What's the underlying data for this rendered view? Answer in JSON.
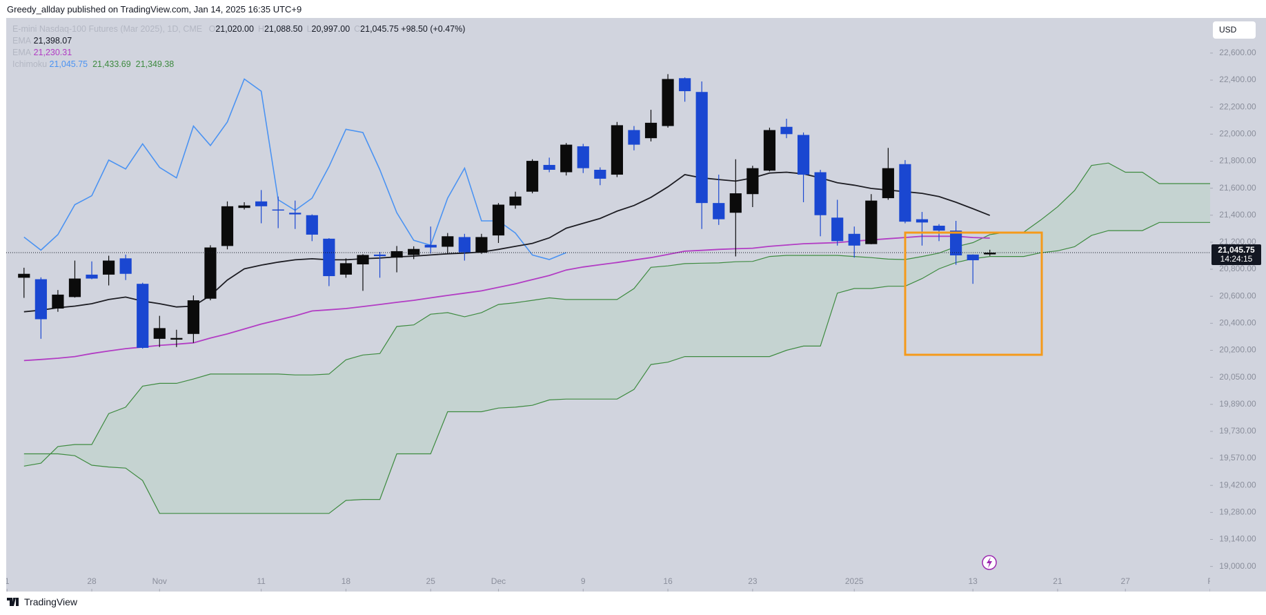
{
  "header": {
    "title": "Greedy_allday published on TradingView.com, Jan 14, 2025 16:35 UTC+9"
  },
  "legend": {
    "symbol": "E-mini Nasdaq-100 Futures (Mar 2025), 1D, CME",
    "ohlc": [
      {
        "key": "O",
        "text": "21,020.00"
      },
      {
        "key": "H",
        "text": "21,088.50"
      },
      {
        "key": "L",
        "text": "20,997.00"
      },
      {
        "key": "C",
        "text": "21,045.75"
      }
    ],
    "change": "+98.50 (+0.47%)",
    "ema_fast": {
      "name": "EMA",
      "text": "21,398.07"
    },
    "ema_slow": {
      "name": "EMA",
      "text": "21,230.31"
    },
    "ichimoku": {
      "name": "Ichimoku",
      "texts": [
        "21,045.75",
        "21,433.69",
        "21,349.38"
      ]
    }
  },
  "currency": "USD",
  "price_marker": {
    "price": "21,045.75",
    "countdown": "14:24:15"
  },
  "footer": {
    "brand": "TradingView"
  },
  "chart_data": {
    "type": "candlestick",
    "up_color": "#0b0b0b",
    "down_color": "#1a47d1",
    "open": [
      20737,
      20726,
      20509,
      20594,
      20760,
      20760,
      20961,
      20692,
      20285,
      20279,
      20321,
      20582,
      21144,
      21454,
      21502,
      21442,
      21418,
      21400,
      21226,
      20760,
      20872,
      21017,
      20972,
      21011,
      21161,
      21133,
      21238,
      21044,
      21250,
      21472,
      21574,
      21772,
      21718,
      21910,
      21736,
      21700,
      22030,
      21970,
      22060,
      22414,
      22312,
      21490,
      21418,
      21556,
      21730,
      22054,
      21994,
      21718,
      21382,
      21262,
      21172,
      21526,
      21778,
      21370,
      21322,
      21286,
      21017,
      21020
    ],
    "high": [
      20822,
      20740,
      20646,
      20928,
      20916,
      21000,
      21017,
      20700,
      20455,
      20352,
      20606,
      21155,
      21502,
      21496,
      21586,
      21538,
      21508,
      21406,
      21230,
      20961,
      21022,
      21055,
      21144,
      21139,
      21316,
      21268,
      21262,
      21262,
      21490,
      21574,
      21814,
      21826,
      21934,
      21928,
      21754,
      22090,
      22060,
      22180,
      22444,
      22420,
      22390,
      21700,
      21814,
      21766,
      22048,
      22114,
      22012,
      21736,
      21514,
      21316,
      21556,
      21898,
      21808,
      21424,
      21334,
      21358,
      21020,
      21088.5
    ],
    "low": [
      20588,
      20285,
      20485,
      20590,
      20726,
      20680,
      20720,
      20212,
      20224,
      20224,
      20255,
      20570,
      21094,
      21442,
      21340,
      21304,
      21298,
      21208,
      20675,
      20737,
      20640,
      20737,
      20777,
      20950,
      21033,
      21028,
      20928,
      21028,
      21189,
      21448,
      21562,
      21718,
      21694,
      21712,
      21622,
      21682,
      21880,
      21946,
      22048,
      22240,
      21298,
      21328,
      20989,
      21460,
      21724,
      21970,
      21496,
      21244,
      21150,
      20972,
      21170,
      21514,
      21340,
      21150,
      21208,
      20866,
      20692,
      20997
    ],
    "close": [
      20766,
      20430,
      20612,
      20731,
      20731,
      20928,
      20766,
      20218,
      20364,
      20291,
      20570,
      21122,
      21466,
      21472,
      21466,
      21436,
      21406,
      21256,
      20749,
      20889,
      21011,
      20994,
      21067,
      21100,
      21122,
      21244,
      21050,
      21238,
      21478,
      21538,
      21802,
      21736,
      21922,
      21748,
      21670,
      22066,
      21922,
      22084,
      22408,
      22318,
      21490,
      21370,
      21562,
      21748,
      22030,
      22000,
      21700,
      21400,
      21208,
      21150,
      21508,
      21748,
      21352,
      21346,
      21286,
      21005,
      20933,
      21045.75
    ],
    "lines": [
      {
        "name": "EMA",
        "color": "#1c1c22",
        "values": [
          20485,
          20497,
          20515,
          20527,
          20545,
          20576,
          20594,
          20564,
          20545,
          20521,
          20527,
          20606,
          20720,
          20806,
          20861,
          20905,
          20939,
          20955,
          20939,
          20939,
          20955,
          20966,
          20983,
          20994,
          21011,
          21028,
          21039,
          21055,
          21094,
          21139,
          21183,
          21232,
          21304,
          21340,
          21376,
          21430,
          21472,
          21532,
          21610,
          21700,
          21676,
          21664,
          21652,
          21676,
          21712,
          21718,
          21706,
          21676,
          21640,
          21622,
          21598,
          21586,
          21574,
          21562,
          21538,
          21496,
          21448,
          21398.07
        ]
      },
      {
        "name": "EMA",
        "color": "#b23cc4",
        "values": [
          20143,
          20149,
          20156,
          20165,
          20182,
          20196,
          20212,
          20224,
          20236,
          20245,
          20255,
          20291,
          20321,
          20358,
          20394,
          20424,
          20455,
          20491,
          20500,
          20509,
          20524,
          20539,
          20555,
          20570,
          20588,
          20606,
          20623,
          20640,
          20666,
          20692,
          20723,
          20754,
          20794,
          20833,
          20867,
          20900,
          20936,
          20972,
          21019,
          21067,
          21080,
          21094,
          21103,
          21111,
          21139,
          21158,
          21178,
          21186,
          21194,
          21208,
          21217,
          21226,
          21235,
          21244,
          21244,
          21244,
          21235,
          21230.31
        ]
      }
    ],
    "ichimoku": {
      "lagging": {
        "color": "#4b93f2",
        "values": [
          21238,
          21083,
          21256,
          21478,
          21544,
          21808,
          21742,
          21928,
          21754,
          21676,
          22060,
          21916,
          22090,
          22408,
          22318,
          21514,
          21436,
          21526,
          21760,
          22036,
          22012,
          21736,
          21418,
          21214,
          21155,
          21526,
          21748,
          21358,
          21358,
          21268,
          21011,
          20944,
          21045.75
        ]
      },
      "span_a": {
        "color": "#3d8a3f",
        "values": [
          19527,
          19543,
          19640,
          19652,
          19652,
          19835,
          19873,
          19998,
          20014,
          20014,
          20040,
          20068,
          20068,
          20068,
          20068,
          20068,
          20063,
          20063,
          20068,
          20147,
          20174,
          20182,
          20376,
          20388,
          20467,
          20479,
          20448,
          20479,
          20539,
          20552,
          20570,
          20588,
          20576,
          20576,
          20576,
          20576,
          20657,
          20828,
          20850,
          20883,
          20889,
          20894,
          20911,
          20916,
          20989,
          21005,
          21005,
          21005,
          21005,
          20989,
          20972,
          20950,
          20944,
          20989,
          21039,
          21133,
          21194,
          21256,
          21274,
          21274,
          21364,
          21462,
          21582,
          21768,
          21786,
          21718,
          21718,
          21634,
          21634,
          21634,
          21634
        ]
      },
      "span_b": {
        "color": "#3d8a3f",
        "values": [
          19597,
          19597,
          19597,
          19586,
          19532,
          19522,
          19516,
          19447,
          19275,
          19275,
          19275,
          19275,
          19275,
          19275,
          19275,
          19275,
          19275,
          19275,
          19275,
          19342,
          19347,
          19347,
          19597,
          19597,
          19597,
          19846,
          19846,
          19846,
          19868,
          19873,
          19884,
          19916,
          19921,
          19921,
          19921,
          19921,
          19978,
          20121,
          20134,
          20165,
          20165,
          20165,
          20165,
          20165,
          20165,
          20200,
          20231,
          20231,
          20623,
          20657,
          20657,
          20674,
          20674,
          20731,
          20806,
          20900,
          20955,
          20989,
          20989,
          20989,
          21044,
          21072,
          21133,
          21250,
          21286,
          21286,
          21286,
          21346,
          21346,
          21346,
          21346
        ]
      },
      "cloud_color": "#c3d3cf"
    },
    "xlim": [
      -1.05,
      70
    ],
    "xticks": [
      {
        "value": -1,
        "label": "1"
      },
      {
        "value": 4,
        "label": "28"
      },
      {
        "value": 8,
        "label": "Nov"
      },
      {
        "value": 14,
        "label": "11"
      },
      {
        "value": 19,
        "label": "18"
      },
      {
        "value": 24,
        "label": "25"
      },
      {
        "value": 28,
        "label": "Dec"
      },
      {
        "value": 33,
        "label": "9"
      },
      {
        "value": 38,
        "label": "16"
      },
      {
        "value": 43,
        "label": "23"
      },
      {
        "value": 49,
        "label": "2025"
      },
      {
        "value": 56,
        "label": "13"
      },
      {
        "value": 61,
        "label": "21"
      },
      {
        "value": 65,
        "label": "27"
      },
      {
        "value": 70,
        "label": "F"
      }
    ],
    "ylim": [
      18870,
      22860
    ],
    "yticks": [
      {
        "value": 19000,
        "label": "19,000.00"
      },
      {
        "value": 19140,
        "label": "19,140.00"
      },
      {
        "value": 19280,
        "label": "19,280.00"
      },
      {
        "value": 19420,
        "label": "19,420.00"
      },
      {
        "value": 19570,
        "label": "19,570.00"
      },
      {
        "value": 19730,
        "label": "19,730.00"
      },
      {
        "value": 19890,
        "label": "19,890.00"
      },
      {
        "value": 20050,
        "label": "20,050.00"
      },
      {
        "value": 20200,
        "label": "20,200.00"
      },
      {
        "value": 20400,
        "label": "20,400.00"
      },
      {
        "value": 20600,
        "label": "20,600.00"
      },
      {
        "value": 20800,
        "label": "20,800.00"
      },
      {
        "value": 21200,
        "label": "21,200.00"
      },
      {
        "value": 21400,
        "label": "21,400.00"
      },
      {
        "value": 21600,
        "label": "21,600.00"
      },
      {
        "value": 21800,
        "label": "21,800.00"
      },
      {
        "value": 22000,
        "label": "22,000.00"
      },
      {
        "value": 22200,
        "label": "22,200.00"
      },
      {
        "value": 22400,
        "label": "22,400.00"
      },
      {
        "value": 22600,
        "label": "22,600.00"
      }
    ],
    "background": "#d1d4de"
  }
}
